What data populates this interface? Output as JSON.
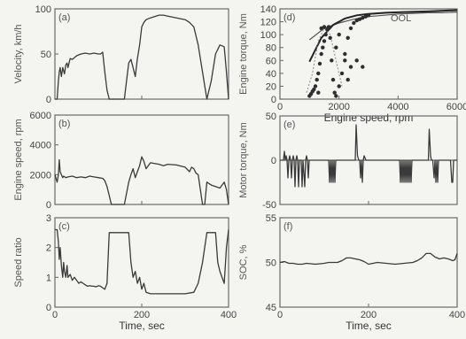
{
  "chart_data": [
    {
      "id": "a",
      "panel_label": "(a)",
      "type": "line",
      "ylabel": "Velocity, km/h",
      "xlabel": "",
      "xlim": [
        0,
        400
      ],
      "ylim": [
        0,
        100
      ],
      "xticks": [
        "0",
        "200",
        "400"
      ],
      "yticks": [
        "0",
        "50",
        "100"
      ],
      "show_xticks": false,
      "x": [
        0,
        5,
        8,
        10,
        12,
        15,
        18,
        22,
        25,
        28,
        30,
        35,
        40,
        50,
        60,
        70,
        80,
        90,
        100,
        105,
        110,
        115,
        120,
        125,
        130,
        140,
        160,
        165,
        170,
        175,
        180,
        185,
        190,
        195,
        200,
        205,
        210,
        220,
        240,
        250,
        260,
        280,
        300,
        310,
        320,
        330,
        340,
        350,
        360,
        370,
        380,
        390,
        395,
        400
      ],
      "y": [
        0,
        0,
        20,
        30,
        35,
        25,
        35,
        28,
        38,
        40,
        35,
        45,
        44,
        48,
        50,
        51,
        50,
        51,
        50,
        50,
        52,
        30,
        10,
        0,
        0,
        0,
        0,
        20,
        40,
        44,
        35,
        25,
        45,
        60,
        80,
        85,
        88,
        90,
        93,
        93,
        92,
        90,
        88,
        85,
        80,
        60,
        30,
        0,
        20,
        50,
        60,
        58,
        30,
        0
      ]
    },
    {
      "id": "b",
      "panel_label": "(b)",
      "type": "line",
      "ylabel": "Engine speed, rpm",
      "xlabel": "",
      "xlim": [
        0,
        400
      ],
      "ylim": [
        0,
        6000
      ],
      "xticks": [
        "0",
        "200",
        "400"
      ],
      "yticks": [
        "0",
        "2000",
        "4000",
        "6000"
      ],
      "show_xticks": false,
      "x": [
        0,
        2,
        5,
        8,
        10,
        12,
        15,
        18,
        20,
        25,
        30,
        40,
        50,
        60,
        70,
        80,
        90,
        100,
        110,
        115,
        120,
        125,
        130,
        140,
        160,
        170,
        175,
        180,
        185,
        190,
        195,
        200,
        205,
        210,
        220,
        240,
        250,
        260,
        280,
        300,
        310,
        315,
        320,
        325,
        330,
        340,
        345,
        350,
        360,
        370,
        380,
        390,
        395,
        400
      ],
      "y": [
        2000,
        1800,
        1500,
        2000,
        3000,
        2200,
        2000,
        1800,
        1900,
        1800,
        1850,
        1900,
        1800,
        1850,
        1800,
        1900,
        1850,
        1800,
        1750,
        1600,
        1200,
        600,
        0,
        0,
        0,
        1500,
        2000,
        2400,
        1800,
        2200,
        2600,
        3200,
        2900,
        2400,
        2800,
        2700,
        2600,
        2700,
        2650,
        2500,
        2200,
        2500,
        2400,
        2100,
        2000,
        0,
        0,
        1500,
        1300,
        1200,
        1100,
        1500,
        1000,
        0
      ]
    },
    {
      "id": "c",
      "panel_label": "(c)",
      "type": "line",
      "ylabel": "Speed ratio",
      "xlabel": "Time, sec",
      "xlim": [
        0,
        400
      ],
      "ylim": [
        0,
        3
      ],
      "xticks": [
        "0",
        "200",
        "400"
      ],
      "yticks": [
        "0",
        "1",
        "2",
        "3"
      ],
      "show_xticks": true,
      "x": [
        0,
        5,
        8,
        10,
        12,
        15,
        18,
        20,
        22,
        25,
        28,
        30,
        35,
        40,
        45,
        50,
        55,
        60,
        65,
        70,
        75,
        80,
        85,
        90,
        95,
        100,
        105,
        110,
        115,
        120,
        125,
        130,
        170,
        175,
        180,
        185,
        190,
        195,
        200,
        205,
        210,
        220,
        240,
        260,
        280,
        300,
        320,
        330,
        340,
        350,
        360,
        370,
        375,
        380,
        390,
        395,
        400
      ],
      "y": [
        2.6,
        2.6,
        2.2,
        1.6,
        2.0,
        1.4,
        1.0,
        1.5,
        1.2,
        1.0,
        1.4,
        1.0,
        1.1,
        0.9,
        1.0,
        0.9,
        0.8,
        0.85,
        0.8,
        0.75,
        0.7,
        0.72,
        0.7,
        0.7,
        0.68,
        0.72,
        0.7,
        0.65,
        0.6,
        0.8,
        2.5,
        2.5,
        2.5,
        1.5,
        1.0,
        1.2,
        0.8,
        1.0,
        0.6,
        0.8,
        0.5,
        0.45,
        0.45,
        0.45,
        0.45,
        0.45,
        0.5,
        0.8,
        1.5,
        2.5,
        2.5,
        2.5,
        1.5,
        1.2,
        0.8,
        2.0,
        2.6
      ]
    },
    {
      "id": "d",
      "panel_label": "(d)",
      "type": "scatter",
      "ylabel": "Engine torque, Nm",
      "xlabel": "Engine speed, rpm",
      "xlim": [
        0,
        6000
      ],
      "ylim": [
        0,
        140
      ],
      "xticks": [
        "0",
        "2000",
        "4000",
        "6000"
      ],
      "yticks": [
        "0",
        "20",
        "40",
        "60",
        "80",
        "100",
        "120",
        "140"
      ],
      "show_xticks": true,
      "annotation": "OOL",
      "ool_curve": {
        "x": [
          1000,
          1400,
          1800,
          2200,
          2600,
          3000,
          3600,
          4200,
          5000,
          6000
        ],
        "y": [
          58,
          95,
          115,
          125,
          130,
          132,
          134,
          135,
          136,
          138
        ]
      },
      "wot_curve": {
        "x": [
          1000,
          1500,
          2000,
          2500,
          3000,
          3500,
          4000,
          4500,
          5000,
          5500,
          6000
        ],
        "y": [
          92,
          110,
          118,
          124,
          128,
          130,
          132,
          133,
          134,
          134,
          135
        ]
      },
      "dotted_curve": {
        "x": [
          900,
          1100,
          1300,
          1500,
          1700,
          1900,
          2100
        ],
        "y": [
          10,
          40,
          90,
          110,
          100,
          60,
          20
        ]
      },
      "points": [
        {
          "x": 1000,
          "y": 5
        },
        {
          "x": 1050,
          "y": 8
        },
        {
          "x": 1100,
          "y": 12
        },
        {
          "x": 1150,
          "y": 15
        },
        {
          "x": 1200,
          "y": 20
        },
        {
          "x": 1250,
          "y": 30
        },
        {
          "x": 1300,
          "y": 40
        },
        {
          "x": 1350,
          "y": 55
        },
        {
          "x": 1400,
          "y": 70
        },
        {
          "x": 1450,
          "y": 80
        },
        {
          "x": 1500,
          "y": 90
        },
        {
          "x": 1550,
          "y": 100
        },
        {
          "x": 1600,
          "y": 108
        },
        {
          "x": 1700,
          "y": 95
        },
        {
          "x": 1750,
          "y": 60
        },
        {
          "x": 1800,
          "y": 30
        },
        {
          "x": 1850,
          "y": 10
        },
        {
          "x": 1900,
          "y": 5
        },
        {
          "x": 2000,
          "y": 20
        },
        {
          "x": 2100,
          "y": 40
        },
        {
          "x": 2200,
          "y": 70
        },
        {
          "x": 2300,
          "y": 95
        },
        {
          "x": 2400,
          "y": 110
        },
        {
          "x": 2500,
          "y": 118
        },
        {
          "x": 2600,
          "y": 122
        },
        {
          "x": 2700,
          "y": 124
        },
        {
          "x": 2800,
          "y": 126
        },
        {
          "x": 2900,
          "y": 128
        },
        {
          "x": 3000,
          "y": 130
        },
        {
          "x": 1400,
          "y": 110
        },
        {
          "x": 1500,
          "y": 112
        },
        {
          "x": 2000,
          "y": 100
        },
        {
          "x": 2200,
          "y": 60
        },
        {
          "x": 2400,
          "y": 50
        },
        {
          "x": 2600,
          "y": 60
        },
        {
          "x": 2800,
          "y": 50
        },
        {
          "x": 2300,
          "y": 30
        },
        {
          "x": 1900,
          "y": 80
        },
        {
          "x": 1650,
          "y": 112
        },
        {
          "x": 1300,
          "y": 10
        }
      ]
    },
    {
      "id": "e",
      "panel_label": "(e)",
      "type": "line",
      "ylabel": "Motor torque, Nm",
      "xlabel": "",
      "xlim": [
        0,
        400
      ],
      "ylim": [
        -50,
        50
      ],
      "xticks": [
        "0",
        "200",
        "400"
      ],
      "yticks": [
        "-50",
        "0",
        "50"
      ],
      "show_xticks": false,
      "x": [
        0,
        8,
        10,
        12,
        14,
        16,
        18,
        20,
        22,
        24,
        26,
        28,
        30,
        32,
        34,
        36,
        38,
        40,
        42,
        44,
        48,
        50,
        52,
        56,
        58,
        60,
        62,
        64,
        66,
        70,
        100,
        110,
        112,
        114,
        116,
        118,
        120,
        122,
        124,
        126,
        128,
        130,
        160,
        170,
        172,
        175,
        178,
        180,
        182,
        184,
        186,
        188,
        190,
        194,
        198,
        200,
        220,
        270,
        272,
        274,
        276,
        278,
        280,
        282,
        284,
        286,
        288,
        290,
        292,
        294,
        296,
        298,
        300,
        302,
        304,
        306,
        308,
        310,
        330,
        335,
        337,
        340,
        342,
        345,
        348,
        350,
        352,
        354,
        356,
        358,
        360,
        370,
        380,
        385,
        388,
        390,
        392,
        395,
        400
      ],
      "y": [
        0,
        0,
        10,
        0,
        5,
        0,
        -20,
        0,
        5,
        0,
        -20,
        0,
        5,
        0,
        -30,
        0,
        5,
        0,
        -30,
        0,
        0,
        -30,
        0,
        -30,
        0,
        5,
        0,
        -20,
        0,
        0,
        0,
        0,
        -25,
        0,
        -25,
        0,
        -25,
        0,
        -25,
        0,
        0,
        0,
        0,
        0,
        40,
        5,
        0,
        0,
        -20,
        0,
        -25,
        0,
        5,
        0,
        0,
        0,
        0,
        0,
        -25,
        0,
        -25,
        0,
        -25,
        0,
        -25,
        0,
        -25,
        0,
        -25,
        0,
        -25,
        0,
        0,
        0,
        0,
        0,
        0,
        0,
        0,
        0,
        35,
        5,
        0,
        0,
        -20,
        0,
        -25,
        0,
        -25,
        0,
        0,
        0,
        0,
        0,
        -25,
        -25,
        0,
        0,
        0
      ]
    },
    {
      "id": "f",
      "panel_label": "(f)",
      "type": "line",
      "ylabel": "SOC, %",
      "xlabel": "Time, sec",
      "xlim": [
        0,
        400
      ],
      "ylim": [
        45,
        55
      ],
      "xticks": [
        "0",
        "200",
        "400"
      ],
      "yticks": [
        "45",
        "50",
        "55"
      ],
      "show_xticks": true,
      "x": [
        0,
        10,
        20,
        30,
        40,
        50,
        60,
        80,
        100,
        110,
        120,
        130,
        140,
        150,
        160,
        170,
        180,
        190,
        200,
        210,
        220,
        240,
        260,
        280,
        300,
        310,
        320,
        330,
        340,
        350,
        360,
        370,
        380,
        390,
        395,
        400
      ],
      "y": [
        50,
        50.1,
        49.9,
        49.9,
        49.8,
        49.8,
        49.9,
        49.8,
        49.9,
        50,
        50,
        50,
        50.2,
        50.5,
        50.5,
        50.4,
        50.3,
        50.1,
        49.8,
        49.9,
        50,
        49.9,
        49.8,
        49.9,
        50,
        50.2,
        50.5,
        51,
        51,
        50.6,
        50.4,
        50.5,
        50.4,
        50.2,
        50.3,
        51
      ]
    }
  ]
}
